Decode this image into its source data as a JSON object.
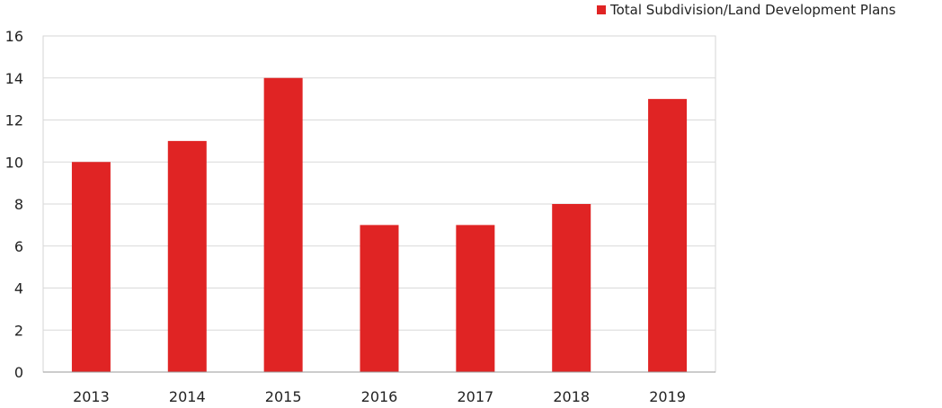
{
  "chart_data": {
    "type": "bar",
    "categories": [
      "2013",
      "2014",
      "2015",
      "2016",
      "2017",
      "2018",
      "2019"
    ],
    "series": [
      {
        "name": "Total Subdivision/Land Development Plans",
        "values": [
          10,
          11,
          14,
          7,
          7,
          8,
          13
        ],
        "color": "#e02424"
      }
    ],
    "ylim": [
      0,
      16
    ],
    "yticks": [
      "0",
      "2",
      "4",
      "6",
      "8",
      "10",
      "12",
      "14",
      "16"
    ],
    "grid": true,
    "legend_position": "top-right",
    "title": "",
    "xlabel": "",
    "ylabel": ""
  }
}
